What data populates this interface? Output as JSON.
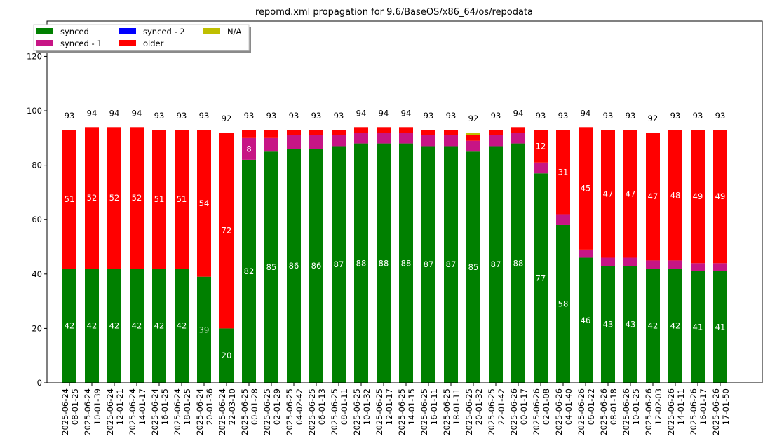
{
  "chart_data": {
    "type": "bar",
    "stacked": true,
    "title": "repomd.xml propagation for 9.6/BaseOS/x86_64/os/repodata",
    "ylim": [
      0,
      133
    ],
    "yticks": [
      0,
      20,
      40,
      60,
      80,
      100,
      120
    ],
    "grid": false,
    "legend": {
      "placement": "top-left",
      "columns": 3,
      "entries": [
        "synced",
        "synced - 1",
        "synced - 2",
        "older",
        "N/A"
      ]
    },
    "categories": [
      [
        "2025-06-24",
        "08-01-25"
      ],
      [
        "2025-06-24",
        "10-01-39"
      ],
      [
        "2025-06-24",
        "12-01-21"
      ],
      [
        "2025-06-24",
        "14-01-17"
      ],
      [
        "2025-06-24",
        "16-01-25"
      ],
      [
        "2025-06-24",
        "18-01-25"
      ],
      [
        "2025-06-24",
        "20-01-36"
      ],
      [
        "2025-06-24",
        "22-03-10"
      ],
      [
        "2025-06-25",
        "00-01-28"
      ],
      [
        "2025-06-25",
        "02-01-29"
      ],
      [
        "2025-06-25",
        "04-02-42"
      ],
      [
        "2025-06-25",
        "06-01-13"
      ],
      [
        "2025-06-25",
        "08-01-11"
      ],
      [
        "2025-06-25",
        "10-01-32"
      ],
      [
        "2025-06-25",
        "12-01-17"
      ],
      [
        "2025-06-25",
        "14-01-15"
      ],
      [
        "2025-06-25",
        "16-01-11"
      ],
      [
        "2025-06-25",
        "18-01-11"
      ],
      [
        "2025-06-25",
        "20-01-32"
      ],
      [
        "2025-06-25",
        "22-01-42"
      ],
      [
        "2025-06-26",
        "00-01-17"
      ],
      [
        "2025-06-26",
        "02-01-08"
      ],
      [
        "2025-06-26",
        "04-01-40"
      ],
      [
        "2025-06-26",
        "06-01-22"
      ],
      [
        "2025-06-26",
        "08-01-18"
      ],
      [
        "2025-06-26",
        "10-01-25"
      ],
      [
        "2025-06-26",
        "12-02-03"
      ],
      [
        "2025-06-26",
        "14-01-11"
      ],
      [
        "2025-06-26",
        "16-01-17"
      ],
      [
        "2025-06-26",
        "17-01-50"
      ]
    ],
    "series": [
      {
        "name": "synced",
        "color": "#008000",
        "values": [
          42,
          42,
          42,
          42,
          42,
          42,
          39,
          20,
          82,
          85,
          86,
          86,
          87,
          88,
          88,
          88,
          87,
          87,
          85,
          87,
          88,
          77,
          58,
          46,
          43,
          43,
          42,
          42,
          41,
          41
        ]
      },
      {
        "name": "synced - 1",
        "color": "#c71585",
        "values": [
          0,
          0,
          0,
          0,
          0,
          0,
          0,
          0,
          8,
          5,
          5,
          5,
          4,
          4,
          4,
          4,
          4,
          4,
          4,
          4,
          4,
          4,
          4,
          3,
          3,
          3,
          3,
          3,
          3,
          3
        ]
      },
      {
        "name": "synced - 2",
        "color": "#0000ff",
        "values": [
          0,
          0,
          0,
          0,
          0,
          0,
          0,
          0,
          0,
          0,
          0,
          0,
          0,
          0,
          0,
          0,
          0,
          0,
          0,
          0,
          0,
          0,
          0,
          0,
          0,
          0,
          0,
          0,
          0,
          0
        ]
      },
      {
        "name": "older",
        "color": "#ff0000",
        "values": [
          51,
          52,
          52,
          52,
          51,
          51,
          54,
          72,
          3,
          3,
          2,
          2,
          2,
          2,
          2,
          2,
          2,
          2,
          2,
          2,
          2,
          12,
          31,
          45,
          47,
          47,
          47,
          48,
          49,
          49
        ]
      },
      {
        "name": "N/A",
        "color": "#bfbf00",
        "values": [
          0,
          0,
          0,
          0,
          0,
          0,
          0,
          0,
          0,
          0,
          0,
          0,
          0,
          0,
          0,
          0,
          0,
          0,
          1,
          0,
          0,
          0,
          0,
          0,
          0,
          0,
          0,
          0,
          0,
          0
        ]
      }
    ],
    "totals": [
      93,
      94,
      94,
      94,
      93,
      93,
      93,
      92,
      93,
      93,
      93,
      93,
      93,
      94,
      94,
      94,
      93,
      93,
      92,
      93,
      94,
      93,
      93,
      94,
      93,
      93,
      92,
      93,
      93,
      93
    ],
    "inner_labels": {
      "synced": [
        42,
        42,
        42,
        42,
        42,
        42,
        39,
        20,
        82,
        85,
        86,
        86,
        87,
        88,
        88,
        88,
        87,
        87,
        85,
        87,
        88,
        77,
        58,
        46,
        43,
        43,
        42,
        42,
        41,
        41
      ],
      "synced - 1": [
        null,
        null,
        null,
        null,
        null,
        null,
        null,
        null,
        8,
        null,
        null,
        null,
        null,
        null,
        null,
        null,
        null,
        null,
        null,
        null,
        null,
        null,
        null,
        null,
        null,
        null,
        null,
        null,
        null,
        null
      ],
      "older": [
        51,
        52,
        52,
        52,
        51,
        51,
        54,
        72,
        null,
        null,
        null,
        null,
        null,
        null,
        null,
        null,
        null,
        null,
        null,
        null,
        null,
        12,
        31,
        45,
        47,
        47,
        47,
        48,
        49,
        49
      ]
    }
  }
}
